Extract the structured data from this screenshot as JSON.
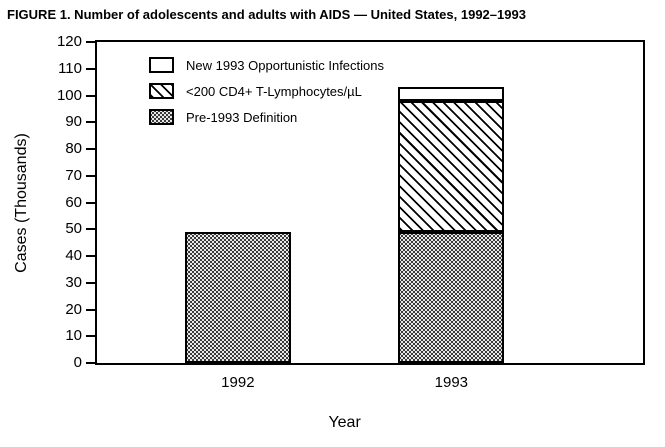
{
  "title": "FIGURE 1. Number of adolescents and adults with AIDS — United States, 1992–1993",
  "chart_data": {
    "type": "bar",
    "stacked": true,
    "title": "FIGURE 1. Number of adolescents and adults with AIDS — United States, 1992–1993",
    "categories": [
      "1992",
      "1993"
    ],
    "series": [
      {
        "name": "Pre-1993 Definition",
        "pattern": "stipple",
        "values": [
          49,
          49
        ]
      },
      {
        "name": "<200 CD4+ T-Lymphocytes/µL",
        "pattern": "hatch",
        "values": [
          0,
          49
        ]
      },
      {
        "name": "New 1993 Opportunistic Infections",
        "pattern": "white",
        "values": [
          0,
          5
        ]
      }
    ],
    "legend": [
      {
        "label": "New 1993 Opportunistic Infections",
        "pattern": "white"
      },
      {
        "label": "<200 CD4+ T-Lymphocytes/µL",
        "pattern": "hatch"
      },
      {
        "label": "Pre-1993 Definition",
        "pattern": "stipple"
      }
    ],
    "xlabel": "Year",
    "ylabel": "Cases (Thousands)",
    "ylim": [
      0,
      120
    ],
    "ytick_step": 10,
    "grid": false,
    "legend_position": "top-left-inside",
    "colors": {
      "ink": "#000000",
      "background": "#ffffff"
    }
  }
}
